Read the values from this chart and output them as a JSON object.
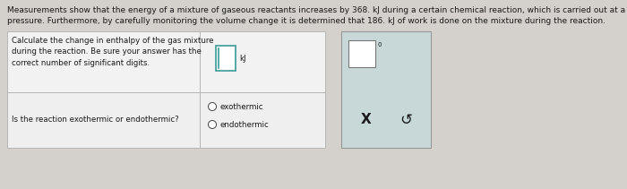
{
  "bg_color": "#d4d0cb",
  "header_line1": "Measurements show that the energy of a mixture of gaseous reactants increases by 368. kJ during a certain chemical reaction, which is carried out at a constant",
  "header_line2": "pressure. Furthermore, by carefully monitoring the volume change it is determined that 186. kJ of work is done on the mixture during the reaction.",
  "row1_label": "Calculate the change in enthalpy of the gas mixture\nduring the reaction. Be sure your answer has the\ncorrect number of significant digits.",
  "row2_label": "Is the reaction exothermic or endothermic?",
  "opt1": "exothermic",
  "opt2": "endothermic",
  "panel_x_label": "X",
  "panel_arrow": "↺",
  "panel_superscript": "0",
  "unit_label": "kJ",
  "header_fs": 6.5,
  "cell_fs": 6.2,
  "text_color": "#1a1a1a",
  "bg_light": "#ebebeb",
  "table_bg": "#f2f2f2",
  "row2_bg": "#efefef",
  "border_color": "#b0b0b0",
  "panel_bg": "#c8d8d8",
  "panel_border": "#999999",
  "input_border": "#3a9a9a",
  "input_bg": "#ffffff",
  "radio_color": "#444444",
  "cursor_color": "#3a9a9a",
  "p2input_border": "#777777",
  "p2input_bg": "#ffffff"
}
